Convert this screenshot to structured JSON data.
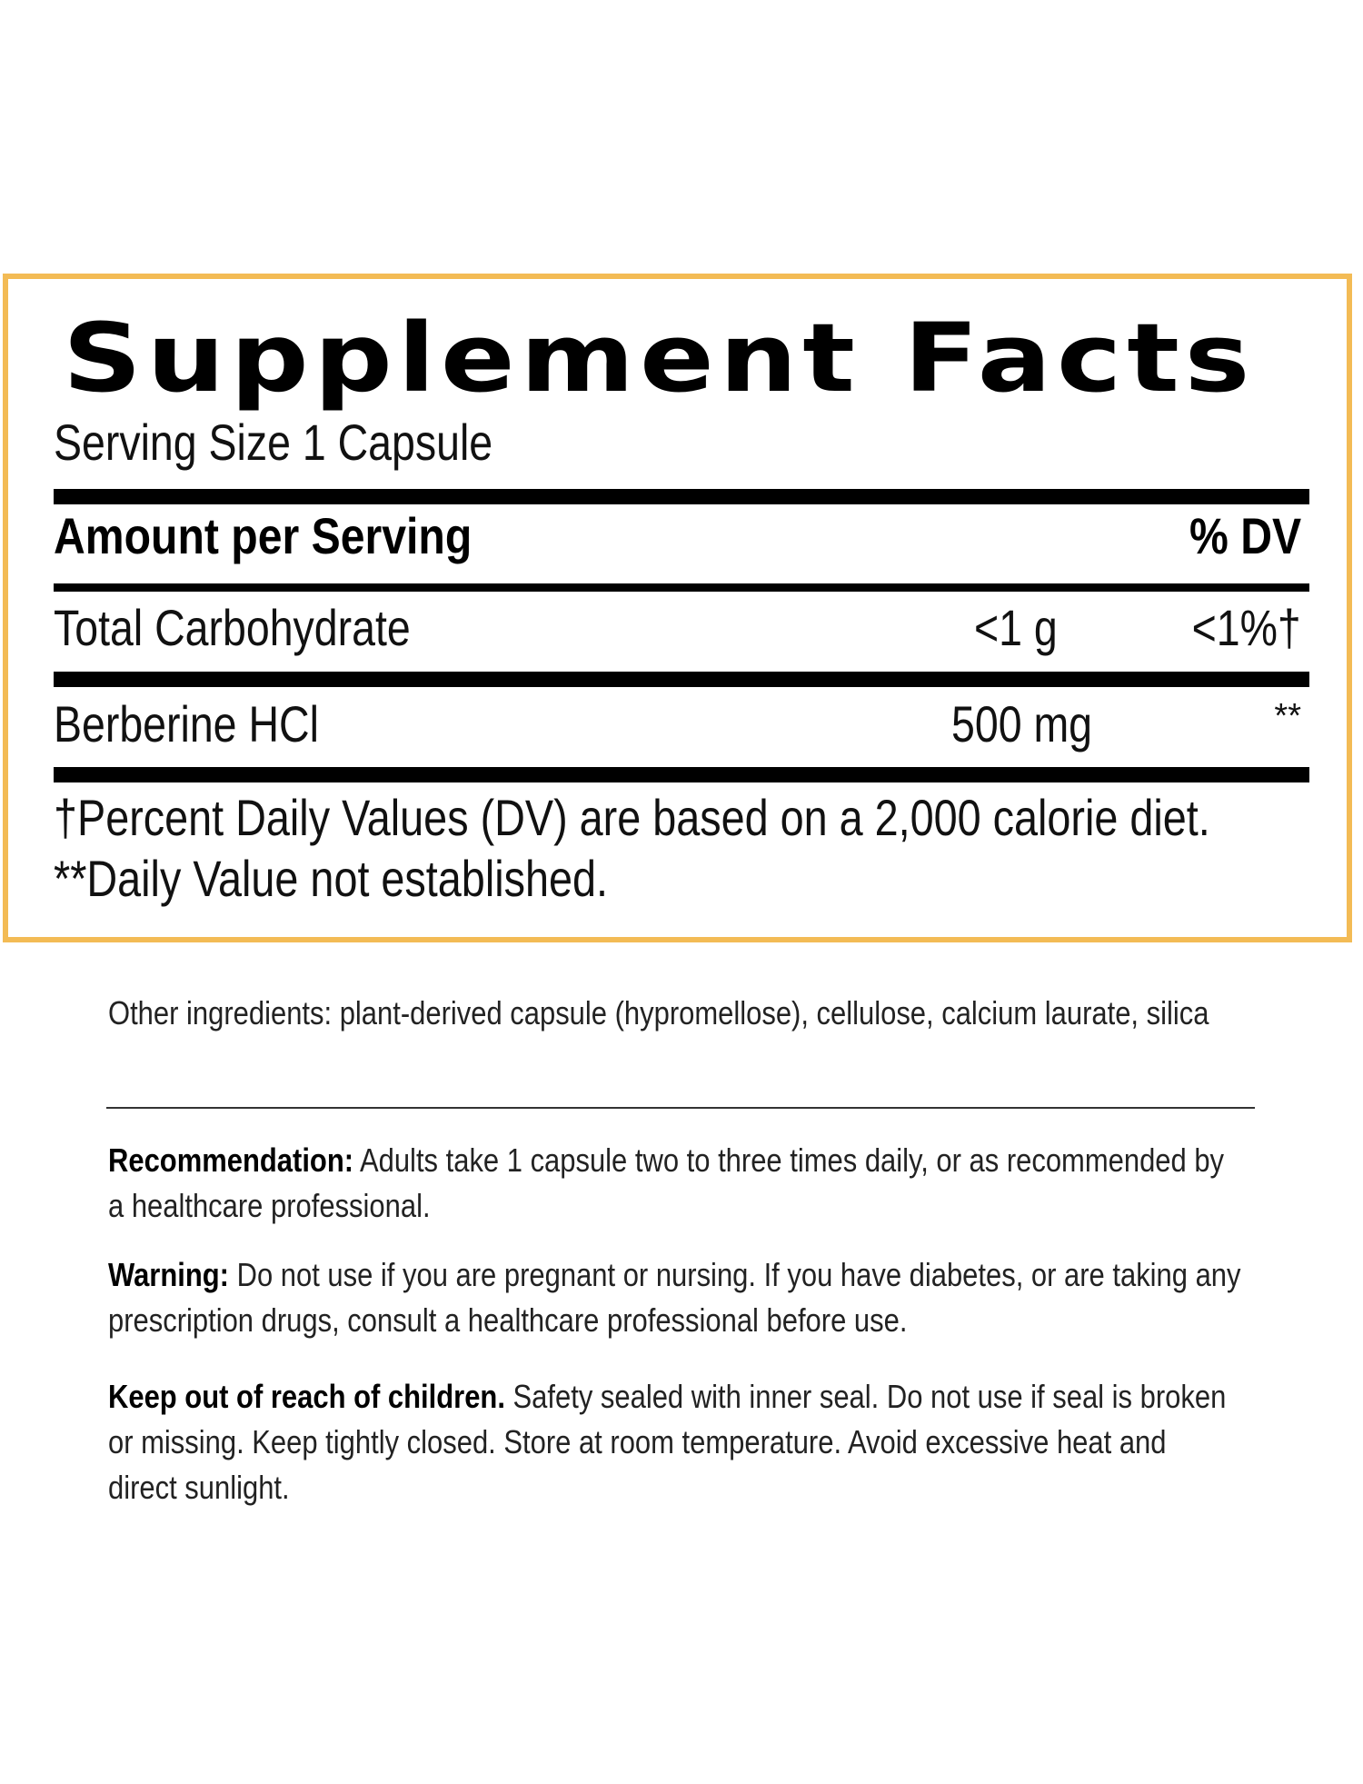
{
  "facts": {
    "title": "Supplement Facts",
    "serving_size": "Serving Size 1 Capsule",
    "header_amount": "Amount per Serving",
    "header_dv": "% DV",
    "rows": [
      {
        "name": "Total Carbohydrate",
        "amount": "<1 g",
        "dv": "<1%†"
      },
      {
        "name": "Berberine HCl",
        "amount": "500 mg",
        "dv": "**"
      }
    ],
    "footnote_1": "†Percent Daily Values (DV) are based on a 2,000 calorie diet.",
    "footnote_2": "**Daily Value not established."
  },
  "other_ingredients": "Other ingredients: plant-derived capsule (hypromellose), cellulose, calcium laurate, silica",
  "recommendation": {
    "label": "Recommendation:",
    "text": " Adults take 1 capsule two to three times daily, or as recommended by a healthcare professional."
  },
  "warning": {
    "label": "Warning:",
    "text": " Do not use if you are pregnant or nursing. If you have diabetes, or are taking any prescription drugs, consult a healthcare professional before use."
  },
  "keep_out": {
    "label": "Keep out of reach of children.",
    "text": " Safety sealed with inner seal. Do not use if seal is broken or missing. Keep tightly closed. Store at room temperature. Avoid excessive heat and direct sunlight."
  },
  "colors": {
    "border": "#f3bb55",
    "text": "#1a1a1a"
  }
}
